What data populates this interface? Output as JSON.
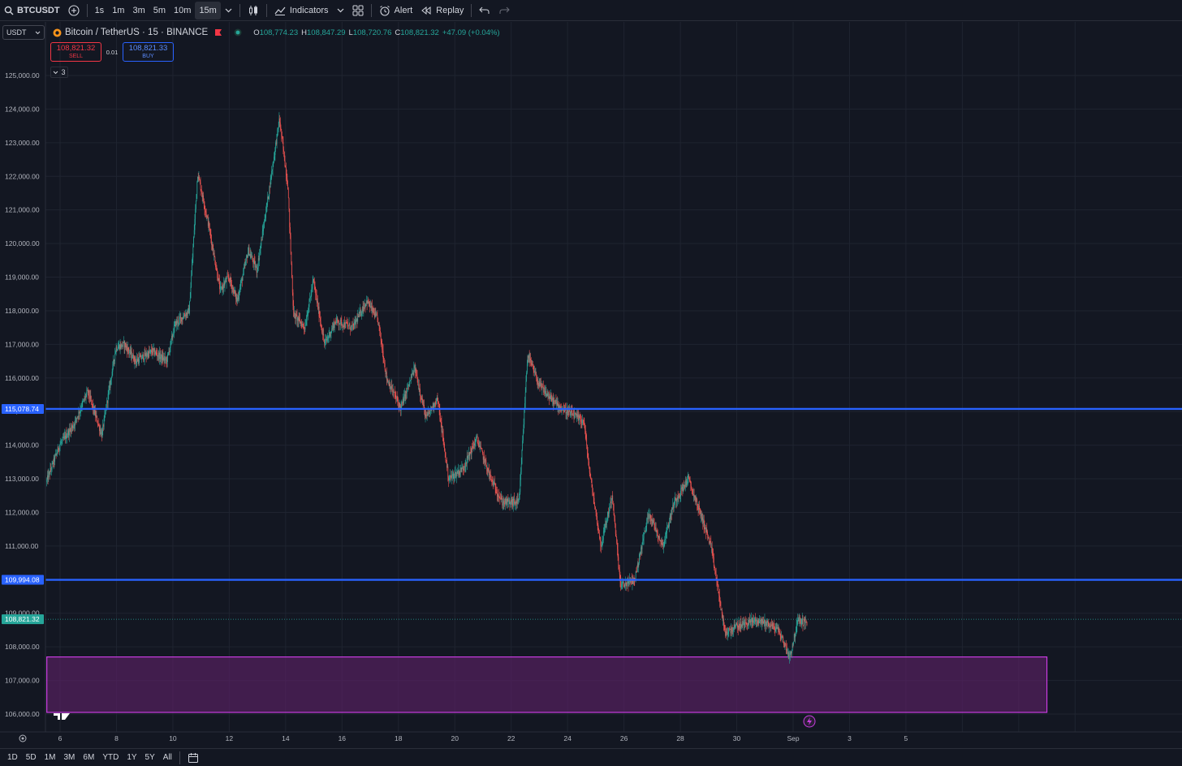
{
  "toolbar": {
    "symbol": "BTCUSDT",
    "intervals": [
      "1s",
      "1m",
      "3m",
      "5m",
      "10m",
      "15m"
    ],
    "active_interval": "15m",
    "indicators_label": "Indicators",
    "alert_label": "Alert",
    "replay_label": "Replay"
  },
  "legend": {
    "currency": "USDT",
    "title": "Bitcoin / TetherUS · 15 · BINANCE",
    "open_label": "O",
    "open": "108,774.23",
    "high_label": "H",
    "high": "108,847.29",
    "low_label": "L",
    "low": "108,720.76",
    "close_label": "C",
    "close": "108,821.32",
    "change": "+47.09 (+0.04%)"
  },
  "trade": {
    "sell_price": "108,821.32",
    "sell_label": "SELL",
    "qty": "0.01",
    "buy_price": "108,821.33",
    "buy_label": "BUY",
    "collapse_count": "3"
  },
  "bottom_ranges": [
    "1D",
    "5D",
    "1M",
    "3M",
    "6M",
    "YTD",
    "1Y",
    "5Y",
    "All"
  ],
  "colors": {
    "background": "#131722",
    "up": "#26a69a",
    "down": "#ef5350",
    "level_line": "#2962ff",
    "zone_fill": "#5b2166",
    "zone_border": "#c93ce0",
    "price_tag": "#26a69a"
  },
  "chart_data": {
    "type": "candlestick",
    "ylim": [
      105700,
      125600
    ],
    "y_ticks": [
      106000,
      107000,
      108000,
      109000,
      110000,
      111000,
      112000,
      113000,
      114000,
      115000,
      116000,
      117000,
      118000,
      119000,
      120000,
      121000,
      122000,
      123000,
      124000,
      125000
    ],
    "y_tick_labels": [
      "106,000.00",
      "107,000.00",
      "108,000.00",
      "109,000.00",
      "110,000.00",
      "111,000.00",
      "112,000.00",
      "113,000.00",
      "114,000.00",
      "115,000.00",
      "116,000.00",
      "117,000.00",
      "118,000.00",
      "119,000.00",
      "120,000.00",
      "121,000.00",
      "122,000.00",
      "123,000.00",
      "124,000.00",
      "125,000.00"
    ],
    "x_labels": [
      "6",
      "8",
      "10",
      "12",
      "14",
      "16",
      "18",
      "20",
      "22",
      "24",
      "26",
      "28",
      "30",
      "Sep",
      "3",
      "5"
    ],
    "x_label_days": [
      6,
      8,
      10,
      12,
      14,
      16,
      18,
      20,
      22,
      24,
      26,
      28,
      30,
      32,
      34,
      36
    ],
    "xlim_days": [
      5.53,
      42.53
    ],
    "price_path": [
      [
        5.53,
        112900
      ],
      [
        6.0,
        114000
      ],
      [
        6.5,
        114600
      ],
      [
        7.0,
        115600
      ],
      [
        7.5,
        114300
      ],
      [
        8.0,
        116900
      ],
      [
        8.3,
        117000
      ],
      [
        8.7,
        116500
      ],
      [
        9.3,
        116800
      ],
      [
        9.8,
        116500
      ],
      [
        10.1,
        117600
      ],
      [
        10.6,
        118000
      ],
      [
        10.9,
        122100
      ],
      [
        11.3,
        120500
      ],
      [
        11.7,
        118600
      ],
      [
        12.0,
        119000
      ],
      [
        12.3,
        118300
      ],
      [
        12.7,
        119800
      ],
      [
        13.0,
        119200
      ],
      [
        13.4,
        121400
      ],
      [
        13.8,
        123700
      ],
      [
        14.1,
        121700
      ],
      [
        14.3,
        117900
      ],
      [
        14.7,
        117500
      ],
      [
        15.0,
        118900
      ],
      [
        15.4,
        117000
      ],
      [
        15.8,
        117700
      ],
      [
        16.4,
        117500
      ],
      [
        16.9,
        118300
      ],
      [
        17.3,
        117700
      ],
      [
        17.6,
        116000
      ],
      [
        18.1,
        115100
      ],
      [
        18.6,
        116300
      ],
      [
        19.0,
        114800
      ],
      [
        19.4,
        115400
      ],
      [
        19.8,
        113000
      ],
      [
        20.3,
        113300
      ],
      [
        20.8,
        114200
      ],
      [
        21.3,
        113000
      ],
      [
        21.7,
        112300
      ],
      [
        22.3,
        112300
      ],
      [
        22.6,
        116700
      ],
      [
        23.0,
        115800
      ],
      [
        23.4,
        115400
      ],
      [
        23.8,
        115100
      ],
      [
        24.6,
        114700
      ],
      [
        24.8,
        113200
      ],
      [
        25.2,
        111000
      ],
      [
        25.6,
        112500
      ],
      [
        25.9,
        109800
      ],
      [
        26.4,
        110000
      ],
      [
        26.9,
        112000
      ],
      [
        27.4,
        111000
      ],
      [
        27.8,
        112300
      ],
      [
        28.3,
        113000
      ],
      [
        28.8,
        111800
      ],
      [
        29.1,
        111000
      ],
      [
        29.3,
        110000
      ],
      [
        29.6,
        108400
      ],
      [
        30.0,
        108600
      ],
      [
        30.7,
        108800
      ],
      [
        31.1,
        108700
      ],
      [
        31.5,
        108500
      ],
      [
        31.9,
        107700
      ],
      [
        32.2,
        108800
      ],
      [
        32.5,
        108700
      ]
    ],
    "vertical_grid_days": [
      6,
      8,
      10,
      12,
      14,
      16,
      18,
      20,
      22,
      24,
      26,
      28,
      30,
      32,
      34,
      36,
      38,
      40,
      42
    ],
    "horizontal_levels": [
      {
        "value": 115078.74,
        "label": "115,078.74"
      },
      {
        "value": 109994.08,
        "label": "109,994.08"
      }
    ],
    "last_price": {
      "value": 108821.32,
      "label": "108,821.32"
    },
    "zone": {
      "y_top": 107700,
      "y_bottom": 106050,
      "x_start_day": 5.53,
      "x_end_day": 41.0
    }
  }
}
